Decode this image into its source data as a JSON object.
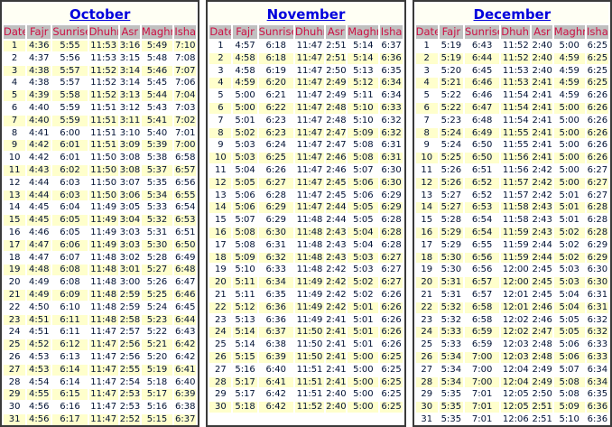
{
  "columns": [
    "Date",
    "Fajr",
    "Sunrise",
    "Dhuhr",
    "Asr",
    "Maghrib",
    "Isha"
  ],
  "colors": {
    "title_link": "#0000DD",
    "title_row_bg": "#FFFFF4",
    "header_bg": "#C0C0C0",
    "header_text": "#CC1144",
    "stripe_row_bg": "#FFFFCC",
    "plain_row_bg": "#FFFFFF",
    "cell_text": "#001133",
    "table_border": "#3A3A3A"
  },
  "months": [
    {
      "title": "October",
      "stripe": "odd",
      "rows": [
        [
          "1",
          "4:36",
          "5:55",
          "11:53",
          "3:16",
          "5:49",
          "7:10"
        ],
        [
          "2",
          "4:37",
          "5:56",
          "11:53",
          "3:15",
          "5:48",
          "7:08"
        ],
        [
          "3",
          "4:38",
          "5:57",
          "11:52",
          "3:14",
          "5:46",
          "7:07"
        ],
        [
          "4",
          "4:38",
          "5:57",
          "11:52",
          "3:14",
          "5:45",
          "7:06"
        ],
        [
          "5",
          "4:39",
          "5:58",
          "11:52",
          "3:13",
          "5:44",
          "7:04"
        ],
        [
          "6",
          "4:40",
          "5:59",
          "11:51",
          "3:12",
          "5:43",
          "7:03"
        ],
        [
          "7",
          "4:40",
          "5:59",
          "11:51",
          "3:11",
          "5:41",
          "7:02"
        ],
        [
          "8",
          "4:41",
          "6:00",
          "11:51",
          "3:10",
          "5:40",
          "7:01"
        ],
        [
          "9",
          "4:42",
          "6:01",
          "11:51",
          "3:09",
          "5:39",
          "7:00"
        ],
        [
          "10",
          "4:42",
          "6:01",
          "11:50",
          "3:08",
          "5:38",
          "6:58"
        ],
        [
          "11",
          "4:43",
          "6:02",
          "11:50",
          "3:08",
          "5:37",
          "6:57"
        ],
        [
          "12",
          "4:44",
          "6:03",
          "11:50",
          "3:07",
          "5:35",
          "6:56"
        ],
        [
          "13",
          "4:44",
          "6:03",
          "11:50",
          "3:06",
          "5:34",
          "6:55"
        ],
        [
          "14",
          "4:45",
          "6:04",
          "11:49",
          "3:05",
          "5:33",
          "6:54"
        ],
        [
          "15",
          "4:45",
          "6:05",
          "11:49",
          "3:04",
          "5:32",
          "6:53"
        ],
        [
          "16",
          "4:46",
          "6:05",
          "11:49",
          "3:03",
          "5:31",
          "6:51"
        ],
        [
          "17",
          "4:47",
          "6:06",
          "11:49",
          "3:03",
          "5:30",
          "6:50"
        ],
        [
          "18",
          "4:47",
          "6:07",
          "11:48",
          "3:02",
          "5:28",
          "6:49"
        ],
        [
          "19",
          "4:48",
          "6:08",
          "11:48",
          "3:01",
          "5:27",
          "6:48"
        ],
        [
          "20",
          "4:49",
          "6:08",
          "11:48",
          "3:00",
          "5:26",
          "6:47"
        ],
        [
          "21",
          "4:49",
          "6:09",
          "11:48",
          "2:59",
          "5:25",
          "6:46"
        ],
        [
          "22",
          "4:50",
          "6:10",
          "11:48",
          "2:59",
          "5:24",
          "6:45"
        ],
        [
          "23",
          "4:51",
          "6:11",
          "11:48",
          "2:58",
          "5:23",
          "6:44"
        ],
        [
          "24",
          "4:51",
          "6:11",
          "11:47",
          "2:57",
          "5:22",
          "6:43"
        ],
        [
          "25",
          "4:52",
          "6:12",
          "11:47",
          "2:56",
          "5:21",
          "6:42"
        ],
        [
          "26",
          "4:53",
          "6:13",
          "11:47",
          "2:56",
          "5:20",
          "6:42"
        ],
        [
          "27",
          "4:53",
          "6:14",
          "11:47",
          "2:55",
          "5:19",
          "6:41"
        ],
        [
          "28",
          "4:54",
          "6:14",
          "11:47",
          "2:54",
          "5:18",
          "6:40"
        ],
        [
          "29",
          "4:55",
          "6:15",
          "11:47",
          "2:53",
          "5:17",
          "6:39"
        ],
        [
          "30",
          "4:56",
          "6:16",
          "11:47",
          "2:53",
          "5:16",
          "6:38"
        ],
        [
          "31",
          "4:56",
          "6:17",
          "11:47",
          "2:52",
          "5:15",
          "6:37"
        ]
      ]
    },
    {
      "title": "November",
      "stripe": "even",
      "rows": [
        [
          "1",
          "4:57",
          "6:18",
          "11:47",
          "2:51",
          "5:14",
          "6:37"
        ],
        [
          "2",
          "4:58",
          "6:18",
          "11:47",
          "2:51",
          "5:14",
          "6:36"
        ],
        [
          "3",
          "4:58",
          "6:19",
          "11:47",
          "2:50",
          "5:13",
          "6:35"
        ],
        [
          "4",
          "4:59",
          "6:20",
          "11:47",
          "2:49",
          "5:12",
          "6:34"
        ],
        [
          "5",
          "5:00",
          "6:21",
          "11:47",
          "2:49",
          "5:11",
          "6:34"
        ],
        [
          "6",
          "5:00",
          "6:22",
          "11:47",
          "2:48",
          "5:10",
          "6:33"
        ],
        [
          "7",
          "5:01",
          "6:23",
          "11:47",
          "2:48",
          "5:10",
          "6:32"
        ],
        [
          "8",
          "5:02",
          "6:23",
          "11:47",
          "2:47",
          "5:09",
          "6:32"
        ],
        [
          "9",
          "5:03",
          "6:24",
          "11:47",
          "2:47",
          "5:08",
          "6:31"
        ],
        [
          "10",
          "5:03",
          "6:25",
          "11:47",
          "2:46",
          "5:08",
          "6:31"
        ],
        [
          "11",
          "5:04",
          "6:26",
          "11:47",
          "2:46",
          "5:07",
          "6:30"
        ],
        [
          "12",
          "5:05",
          "6:27",
          "11:47",
          "2:45",
          "5:06",
          "6:30"
        ],
        [
          "13",
          "5:06",
          "6:28",
          "11:47",
          "2:45",
          "5:06",
          "6:29"
        ],
        [
          "14",
          "5:06",
          "6:29",
          "11:47",
          "2:44",
          "5:05",
          "6:29"
        ],
        [
          "15",
          "5:07",
          "6:29",
          "11:48",
          "2:44",
          "5:05",
          "6:28"
        ],
        [
          "16",
          "5:08",
          "6:30",
          "11:48",
          "2:43",
          "5:04",
          "6:28"
        ],
        [
          "17",
          "5:08",
          "6:31",
          "11:48",
          "2:43",
          "5:04",
          "6:28"
        ],
        [
          "18",
          "5:09",
          "6:32",
          "11:48",
          "2:43",
          "5:03",
          "6:27"
        ],
        [
          "19",
          "5:10",
          "6:33",
          "11:48",
          "2:42",
          "5:03",
          "6:27"
        ],
        [
          "20",
          "5:11",
          "6:34",
          "11:49",
          "2:42",
          "5:02",
          "6:27"
        ],
        [
          "21",
          "5:11",
          "6:35",
          "11:49",
          "2:42",
          "5:02",
          "6:26"
        ],
        [
          "22",
          "5:12",
          "6:36",
          "11:49",
          "2:42",
          "5:01",
          "6:26"
        ],
        [
          "23",
          "5:13",
          "6:36",
          "11:49",
          "2:41",
          "5:01",
          "6:26"
        ],
        [
          "24",
          "5:14",
          "6:37",
          "11:50",
          "2:41",
          "5:01",
          "6:26"
        ],
        [
          "25",
          "5:14",
          "6:38",
          "11:50",
          "2:41",
          "5:01",
          "6:26"
        ],
        [
          "26",
          "5:15",
          "6:39",
          "11:50",
          "2:41",
          "5:00",
          "6:25"
        ],
        [
          "27",
          "5:16",
          "6:40",
          "11:51",
          "2:41",
          "5:00",
          "6:25"
        ],
        [
          "28",
          "5:17",
          "6:41",
          "11:51",
          "2:41",
          "5:00",
          "6:25"
        ],
        [
          "29",
          "5:17",
          "6:42",
          "11:51",
          "2:40",
          "5:00",
          "6:25"
        ],
        [
          "30",
          "5:18",
          "6:42",
          "11:52",
          "2:40",
          "5:00",
          "6:25"
        ]
      ]
    },
    {
      "title": "December",
      "stripe": "even",
      "rows": [
        [
          "1",
          "5:19",
          "6:43",
          "11:52",
          "2:40",
          "5:00",
          "6:25"
        ],
        [
          "2",
          "5:19",
          "6:44",
          "11:52",
          "2:40",
          "4:59",
          "6:25"
        ],
        [
          "3",
          "5:20",
          "6:45",
          "11:53",
          "2:40",
          "4:59",
          "6:25"
        ],
        [
          "4",
          "5:21",
          "6:46",
          "11:53",
          "2:41",
          "4:59",
          "6:25"
        ],
        [
          "5",
          "5:22",
          "6:46",
          "11:54",
          "2:41",
          "4:59",
          "6:26"
        ],
        [
          "6",
          "5:22",
          "6:47",
          "11:54",
          "2:41",
          "5:00",
          "6:26"
        ],
        [
          "7",
          "5:23",
          "6:48",
          "11:54",
          "2:41",
          "5:00",
          "6:26"
        ],
        [
          "8",
          "5:24",
          "6:49",
          "11:55",
          "2:41",
          "5:00",
          "6:26"
        ],
        [
          "9",
          "5:24",
          "6:50",
          "11:55",
          "2:41",
          "5:00",
          "6:26"
        ],
        [
          "10",
          "5:25",
          "6:50",
          "11:56",
          "2:41",
          "5:00",
          "6:26"
        ],
        [
          "11",
          "5:26",
          "6:51",
          "11:56",
          "2:42",
          "5:00",
          "6:27"
        ],
        [
          "12",
          "5:26",
          "6:52",
          "11:57",
          "2:42",
          "5:00",
          "6:27"
        ],
        [
          "13",
          "5:27",
          "6:52",
          "11:57",
          "2:42",
          "5:01",
          "6:27"
        ],
        [
          "14",
          "5:27",
          "6:53",
          "11:58",
          "2:43",
          "5:01",
          "6:28"
        ],
        [
          "15",
          "5:28",
          "6:54",
          "11:58",
          "2:43",
          "5:01",
          "6:28"
        ],
        [
          "16",
          "5:29",
          "6:54",
          "11:59",
          "2:43",
          "5:02",
          "6:28"
        ],
        [
          "17",
          "5:29",
          "6:55",
          "11:59",
          "2:44",
          "5:02",
          "6:29"
        ],
        [
          "18",
          "5:30",
          "6:56",
          "11:59",
          "2:44",
          "5:02",
          "6:29"
        ],
        [
          "19",
          "5:30",
          "6:56",
          "12:00",
          "2:45",
          "5:03",
          "6:30"
        ],
        [
          "20",
          "5:31",
          "6:57",
          "12:00",
          "2:45",
          "5:03",
          "6:30"
        ],
        [
          "21",
          "5:31",
          "6:57",
          "12:01",
          "2:45",
          "5:04",
          "6:31"
        ],
        [
          "22",
          "5:32",
          "6:58",
          "12:01",
          "2:46",
          "5:04",
          "6:31"
        ],
        [
          "23",
          "5:32",
          "6:58",
          "12:02",
          "2:46",
          "5:05",
          "6:32"
        ],
        [
          "24",
          "5:33",
          "6:59",
          "12:02",
          "2:47",
          "5:05",
          "6:32"
        ],
        [
          "25",
          "5:33",
          "6:59",
          "12:03",
          "2:48",
          "5:06",
          "6:33"
        ],
        [
          "26",
          "5:34",
          "7:00",
          "12:03",
          "2:48",
          "5:06",
          "6:33"
        ],
        [
          "27",
          "5:34",
          "7:00",
          "12:04",
          "2:49",
          "5:07",
          "6:34"
        ],
        [
          "28",
          "5:34",
          "7:00",
          "12:04",
          "2:49",
          "5:08",
          "6:34"
        ],
        [
          "29",
          "5:35",
          "7:01",
          "12:05",
          "2:50",
          "5:08",
          "6:35"
        ],
        [
          "30",
          "5:35",
          "7:01",
          "12:05",
          "2:51",
          "5:09",
          "6:36"
        ],
        [
          "31",
          "5:35",
          "7:01",
          "12:06",
          "2:51",
          "5:10",
          "6:36"
        ]
      ]
    }
  ]
}
